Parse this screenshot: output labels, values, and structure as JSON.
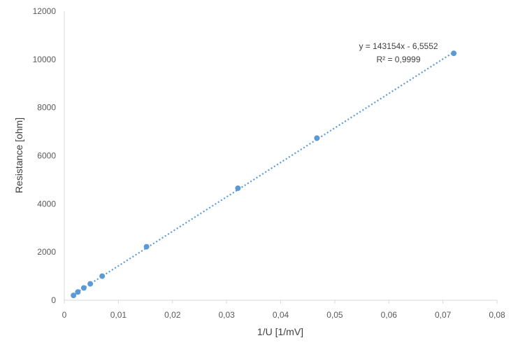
{
  "chart_data": {
    "type": "scatter",
    "xlabel": "1/U [1/mV]",
    "ylabel": "Resistance [ohm]",
    "xlim": [
      0,
      0.08
    ],
    "ylim": [
      0,
      12000
    ],
    "x_ticks": [
      "0",
      "0,01",
      "0,02",
      "0,03",
      "0,04",
      "0,05",
      "0,06",
      "0,07",
      "0,08"
    ],
    "y_ticks": [
      "0",
      "2000",
      "4000",
      "6000",
      "8000",
      "10000",
      "12000"
    ],
    "grid": false,
    "points": [
      {
        "x": 0.0017,
        "y": 200
      },
      {
        "x": 0.0025,
        "y": 340
      },
      {
        "x": 0.0036,
        "y": 510
      },
      {
        "x": 0.0048,
        "y": 680
      },
      {
        "x": 0.007,
        "y": 1000
      },
      {
        "x": 0.0152,
        "y": 2220
      },
      {
        "x": 0.0321,
        "y": 4650
      },
      {
        "x": 0.0467,
        "y": 6730
      },
      {
        "x": 0.072,
        "y": 10250
      }
    ],
    "trendline": {
      "style": "dotted",
      "slope": 143154,
      "intercept": -6.5552,
      "x_range": [
        0.0017,
        0.072
      ],
      "equation": "y = 143154x - 6,5552",
      "r2": "R² = 0,9999"
    },
    "colors": {
      "marker": "#5b9bd5",
      "axis": "#d9d9d9",
      "text": "#595959"
    }
  }
}
